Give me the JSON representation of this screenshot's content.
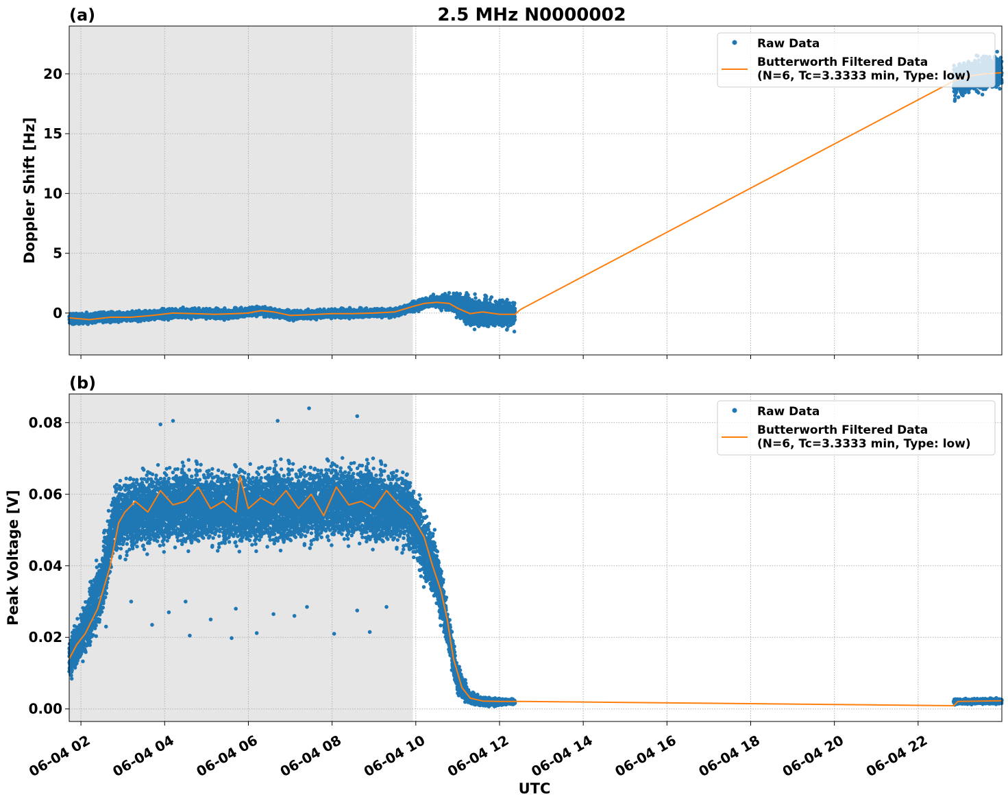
{
  "figure": {
    "title": "2.5 MHz N0000002",
    "xlabel": "UTC"
  },
  "chart_data": [
    {
      "panel_label": "(a)",
      "type": "scatter",
      "title": "2.5 MHz N0000002",
      "xlabel": "UTC",
      "ylabel": "Doppler Shift [Hz]",
      "xlim": [
        1.72,
        24.0
      ],
      "ylim": [
        -3.5,
        24.0
      ],
      "yticks": [
        0,
        5,
        10,
        15,
        20
      ],
      "ytick_labels": [
        "0",
        "5",
        "10",
        "15",
        "20"
      ],
      "grid": true,
      "legend_position": "top-right",
      "shaded_interval": [
        1.72,
        9.93
      ],
      "series": [
        {
          "name": "Raw Data",
          "style": "points",
          "color": "#1f77b4",
          "segments": [
            {
              "x_start": 1.72,
              "x_end": 12.37,
              "centerline": [
                [
                  1.72,
                  -0.5
                ],
                [
                  2.5,
                  -0.4
                ],
                [
                  3.5,
                  -0.2
                ],
                [
                  4.5,
                  0.0
                ],
                [
                  5.5,
                  -0.1
                ],
                [
                  6.3,
                  0.2
                ],
                [
                  7.0,
                  -0.2
                ],
                [
                  8.0,
                  -0.05
                ],
                [
                  9.5,
                  0.05
                ],
                [
                  9.93,
                  0.5
                ],
                [
                  10.4,
                  1.0
                ],
                [
                  10.9,
                  0.8
                ],
                [
                  11.3,
                  0.1
                ],
                [
                  11.9,
                  0.0
                ],
                [
                  12.37,
                  -0.1
                ]
              ],
              "spread": [
                [
                  1.72,
                  0.55
                ],
                [
                  9.5,
                  0.45
                ],
                [
                  10.5,
                  0.6
                ],
                [
                  11.2,
                  1.5
                ],
                [
                  12.37,
                  1.5
                ]
              ]
            },
            {
              "x_start": 22.85,
              "x_end": 24.0,
              "centerline": [
                [
                  22.85,
                  19.3
                ],
                [
                  23.2,
                  19.8
                ],
                [
                  23.6,
                  20.0
                ],
                [
                  24.0,
                  20.2
                ]
              ],
              "spread": [
                [
                  22.85,
                  1.8
                ],
                [
                  24.0,
                  1.8
                ]
              ]
            }
          ]
        },
        {
          "name": "Butterworth Filtered Data\n(N=6, Tc=3.3333 min, Type: low)",
          "style": "line",
          "color": "#ff7f0e",
          "points": [
            [
              1.72,
              -0.4
            ],
            [
              2.2,
              -0.55
            ],
            [
              2.7,
              -0.35
            ],
            [
              3.2,
              -0.35
            ],
            [
              3.7,
              -0.2
            ],
            [
              4.2,
              0.0
            ],
            [
              4.7,
              -0.05
            ],
            [
              5.2,
              -0.1
            ],
            [
              5.7,
              -0.05
            ],
            [
              6.0,
              0.0
            ],
            [
              6.3,
              0.2
            ],
            [
              6.6,
              0.1
            ],
            [
              7.0,
              -0.2
            ],
            [
              7.4,
              -0.15
            ],
            [
              8.0,
              -0.05
            ],
            [
              8.5,
              -0.05
            ],
            [
              9.0,
              0.0
            ],
            [
              9.5,
              0.1
            ],
            [
              9.93,
              0.55
            ],
            [
              10.2,
              0.8
            ],
            [
              10.5,
              0.9
            ],
            [
              10.8,
              0.8
            ],
            [
              11.0,
              0.4
            ],
            [
              11.3,
              -0.05
            ],
            [
              11.6,
              0.1
            ],
            [
              12.0,
              -0.1
            ],
            [
              12.37,
              -0.1
            ],
            [
              12.5,
              0.3
            ],
            [
              22.85,
              19.4
            ],
            [
              23.2,
              19.8
            ],
            [
              23.6,
              20.0
            ],
            [
              24.0,
              20.1
            ]
          ]
        }
      ]
    },
    {
      "panel_label": "(b)",
      "type": "scatter",
      "xlabel": "UTC",
      "ylabel": "Peak Voltage [V]",
      "xlim": [
        1.72,
        24.0
      ],
      "ylim": [
        -0.0035,
        0.088
      ],
      "yticks": [
        0.0,
        0.02,
        0.04,
        0.06,
        0.08
      ],
      "ytick_labels": [
        "0.00",
        "0.02",
        "0.04",
        "0.06",
        "0.08"
      ],
      "xticks": [
        2,
        4,
        6,
        8,
        10,
        12,
        14,
        16,
        18,
        20,
        22
      ],
      "xtick_labels": [
        "06-04 02",
        "06-04 04",
        "06-04 06",
        "06-04 08",
        "06-04 10",
        "06-04 12",
        "06-04 14",
        "06-04 16",
        "06-04 18",
        "06-04 20",
        "06-04 22"
      ],
      "grid": true,
      "legend_position": "top-right",
      "shaded_interval": [
        1.72,
        9.93
      ],
      "series": [
        {
          "name": "Raw Data",
          "style": "points",
          "color": "#1f77b4",
          "segments": [
            {
              "x_start": 1.72,
              "x_end": 12.37,
              "centerline": [
                [
                  1.72,
                  0.014
                ],
                [
                  2.1,
                  0.022
                ],
                [
                  2.5,
                  0.035
                ],
                [
                  2.8,
                  0.053
                ],
                [
                  3.2,
                  0.055
                ],
                [
                  4.0,
                  0.056
                ],
                [
                  5.0,
                  0.057
                ],
                [
                  6.0,
                  0.056
                ],
                [
                  7.0,
                  0.057
                ],
                [
                  8.0,
                  0.058
                ],
                [
                  9.0,
                  0.057
                ],
                [
                  9.8,
                  0.056
                ],
                [
                  10.1,
                  0.048
                ],
                [
                  10.5,
                  0.038
                ],
                [
                  10.8,
                  0.02
                ],
                [
                  11.0,
                  0.008
                ],
                [
                  11.3,
                  0.003
                ],
                [
                  11.6,
                  0.002
                ],
                [
                  12.37,
                  0.002
                ]
              ],
              "spread": [
                [
                  1.72,
                  0.007
                ],
                [
                  2.6,
                  0.012
                ],
                [
                  3.0,
                  0.013
                ],
                [
                  9.8,
                  0.013
                ],
                [
                  10.4,
                  0.012
                ],
                [
                  10.9,
                  0.006
                ],
                [
                  11.3,
                  0.002
                ],
                [
                  12.37,
                  0.0008
                ]
              ]
            },
            {
              "x_start": 22.85,
              "x_end": 24.0,
              "centerline": [
                [
                  22.85,
                  0.002
                ],
                [
                  24.0,
                  0.0022
                ]
              ],
              "spread": [
                [
                  22.85,
                  0.0009
                ],
                [
                  24.0,
                  0.0009
                ]
              ]
            }
          ],
          "outlier_points": [
            [
              2.6,
              0.023
            ],
            [
              3.2,
              0.03
            ],
            [
              3.7,
              0.0235
            ],
            [
              4.1,
              0.027
            ],
            [
              4.5,
              0.03
            ],
            [
              5.1,
              0.025
            ],
            [
              5.7,
              0.028
            ],
            [
              6.2,
              0.0212
            ],
            [
              6.6,
              0.0265
            ],
            [
              7.1,
              0.026
            ],
            [
              7.4,
              0.0285
            ],
            [
              8.05,
              0.021
            ],
            [
              8.6,
              0.0275
            ],
            [
              8.9,
              0.0215
            ],
            [
              9.3,
              0.0285
            ],
            [
              5.6,
              0.0198
            ],
            [
              4.6,
              0.0205
            ],
            [
              7.45,
              0.084
            ],
            [
              8.6,
              0.0818
            ],
            [
              4.2,
              0.0805
            ],
            [
              6.7,
              0.0805
            ],
            [
              3.9,
              0.0795
            ]
          ]
        },
        {
          "name": "Butterworth Filtered Data\n(N=6, Tc=3.3333 min, Type: low)",
          "style": "line",
          "color": "#ff7f0e",
          "points": [
            [
              1.72,
              0.014
            ],
            [
              1.9,
              0.018
            ],
            [
              2.1,
              0.021
            ],
            [
              2.4,
              0.028
            ],
            [
              2.7,
              0.04
            ],
            [
              2.9,
              0.052
            ],
            [
              3.05,
              0.055
            ],
            [
              3.3,
              0.058
            ],
            [
              3.6,
              0.055
            ],
            [
              3.9,
              0.061
            ],
            [
              4.2,
              0.057
            ],
            [
              4.5,
              0.058
            ],
            [
              4.8,
              0.062
            ],
            [
              5.1,
              0.056
            ],
            [
              5.4,
              0.058
            ],
            [
              5.7,
              0.055
            ],
            [
              5.8,
              0.065
            ],
            [
              6.0,
              0.056
            ],
            [
              6.3,
              0.059
            ],
            [
              6.6,
              0.057
            ],
            [
              6.9,
              0.061
            ],
            [
              7.2,
              0.056
            ],
            [
              7.5,
              0.06
            ],
            [
              7.8,
              0.054
            ],
            [
              8.1,
              0.062
            ],
            [
              8.4,
              0.057
            ],
            [
              8.7,
              0.058
            ],
            [
              9.0,
              0.056
            ],
            [
              9.3,
              0.061
            ],
            [
              9.6,
              0.057
            ],
            [
              9.9,
              0.054
            ],
            [
              10.0,
              0.052
            ],
            [
              10.2,
              0.048
            ],
            [
              10.4,
              0.04
            ],
            [
              10.6,
              0.033
            ],
            [
              10.75,
              0.025
            ],
            [
              10.9,
              0.014
            ],
            [
              11.1,
              0.006
            ],
            [
              11.3,
              0.003
            ],
            [
              11.6,
              0.0022
            ],
            [
              12.0,
              0.0021
            ],
            [
              12.37,
              0.0021
            ],
            [
              22.85,
              0.0009
            ],
            [
              22.95,
              0.0021
            ],
            [
              23.5,
              0.0022
            ],
            [
              24.0,
              0.0023
            ]
          ]
        }
      ]
    }
  ]
}
